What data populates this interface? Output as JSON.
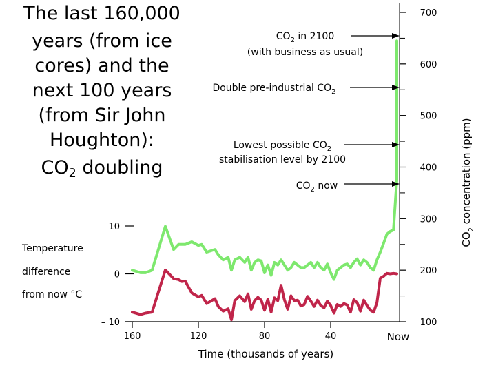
{
  "title_lines": [
    "The last 160,000",
    "years (from ice",
    "cores) and the",
    "next 100 years",
    "(from Sir John",
    "Houghton):",
    "CO2 doubling"
  ],
  "chart_data": {
    "type": "line",
    "x_axis": {
      "label": "Time (thousands of years)",
      "ticks": [
        "160",
        "120",
        "80",
        "40"
      ],
      "end_label": "Now",
      "range": [
        160,
        0
      ]
    },
    "left_axis": {
      "label_lines": [
        "Temperature",
        "difference",
        "from now °C"
      ],
      "ticks": [
        "10",
        "0",
        "– 10"
      ],
      "range": [
        -10,
        10
      ]
    },
    "right_axis": {
      "label": "CO2 concentration (ppm)",
      "ticks": [
        "700",
        "600",
        "500",
        "400",
        "300",
        "200",
        "100"
      ],
      "range": [
        100,
        700
      ]
    },
    "annotations": [
      {
        "lines": [
          "CO2 in 2100",
          "(with business as usual)"
        ],
        "ppm": 645
      },
      {
        "lines": [
          "Double pre-industrial CO2"
        ],
        "ppm": 560
      },
      {
        "lines": [
          "Lowest possible CO2",
          "stabilisation level by 2100"
        ],
        "ppm": 440
      },
      {
        "lines": [
          "CO2 now"
        ],
        "ppm": 375
      }
    ],
    "series": [
      {
        "axis": "right",
        "color": "#7ee86e",
        "x": [
          160,
          155,
          152,
          148,
          140,
          135,
          132,
          130,
          128,
          124,
          120,
          118,
          115,
          110,
          108,
          105,
          102,
          100,
          98,
          95,
          92,
          90,
          88,
          86,
          84,
          82,
          80,
          78,
          76,
          74,
          72,
          70,
          68,
          66,
          64,
          62,
          60,
          58,
          56,
          54,
          52,
          50,
          48,
          46,
          44,
          42,
          40,
          38,
          36,
          34,
          32,
          30,
          28,
          26,
          24,
          22,
          20,
          18,
          16,
          14,
          12,
          10,
          8,
          6,
          4,
          2,
          0
        ],
        "y": [
          200,
          195,
          195,
          200,
          285,
          240,
          250,
          250,
          250,
          255,
          248,
          250,
          235,
          240,
          230,
          220,
          225,
          200,
          220,
          225,
          215,
          225,
          200,
          215,
          220,
          218,
          195,
          210,
          190,
          215,
          210,
          220,
          210,
          200,
          205,
          215,
          210,
          205,
          205,
          210,
          215,
          205,
          215,
          205,
          200,
          212,
          195,
          182,
          200,
          205,
          210,
          212,
          205,
          215,
          222,
          210,
          220,
          215,
          205,
          200,
          220,
          235,
          252,
          270,
          275,
          278,
          375
        ]
      },
      {
        "axis": "right",
        "color": "#7ee86e",
        "x": [
          0,
          0,
          0
        ],
        "y": [
          375,
          560,
          645
        ]
      },
      {
        "axis": "left",
        "color": "#c0254a",
        "x": [
          160,
          155,
          152,
          148,
          140,
          135,
          132,
          130,
          128,
          124,
          120,
          118,
          115,
          110,
          108,
          105,
          102,
          100,
          98,
          95,
          92,
          90,
          88,
          86,
          84,
          82,
          80,
          78,
          76,
          74,
          72,
          70,
          68,
          66,
          64,
          62,
          60,
          58,
          56,
          54,
          52,
          50,
          48,
          46,
          44,
          42,
          40,
          38,
          36,
          34,
          32,
          30,
          28,
          26,
          24,
          22,
          20,
          18,
          16,
          14,
          12,
          10,
          8,
          6,
          4,
          2,
          0
        ],
        "y": [
          -8,
          -8.5,
          -8.2,
          -8,
          0.8,
          -1,
          -1.2,
          -1.6,
          -1.5,
          -4,
          -4.8,
          -4.5,
          -6.2,
          -5.2,
          -6.8,
          -7.8,
          -7.3,
          -9.6,
          -5.6,
          -4.6,
          -5.8,
          -4.2,
          -7.4,
          -5.6,
          -4.9,
          -5.5,
          -7.6,
          -5.3,
          -8,
          -5,
          -5.6,
          -2.4,
          -5.4,
          -7.4,
          -4.6,
          -5.6,
          -5.5,
          -6.7,
          -6.4,
          -4.7,
          -5.7,
          -6.8,
          -5.5,
          -6.6,
          -7.1,
          -5.7,
          -6.6,
          -8.2,
          -6.4,
          -6.8,
          -6.2,
          -6.5,
          -8,
          -5.4,
          -6,
          -7.8,
          -5.5,
          -6.6,
          -7.6,
          -8,
          -6,
          -0.9,
          -0.5,
          0.1,
          0,
          0.1,
          0
        ]
      }
    ]
  }
}
